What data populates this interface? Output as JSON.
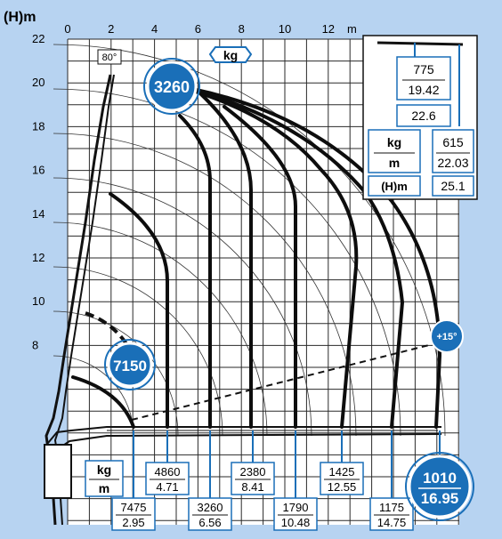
{
  "axes": {
    "y_label": "(H)m",
    "x_unit": "m",
    "x_ticks": [
      "0",
      "2",
      "4",
      "6",
      "8",
      "10",
      "12"
    ],
    "y_ticks": [
      "22",
      "20",
      "18",
      "16",
      "14",
      "12",
      "10",
      "8"
    ]
  },
  "annotations": {
    "angle_max": "80°",
    "unit_badge": "kg",
    "angle_ext": "+15°",
    "badge_3260": "3260",
    "badge_7150": "7150"
  },
  "inset": {
    "top_kg": "775",
    "top_m": "19.42",
    "mid_h": "22.6",
    "unit_kg": "kg",
    "unit_m": "m",
    "right_kg": "615",
    "right_m": "22.03",
    "h_label": "(H)m",
    "h_value": "25.1"
  },
  "legend": {
    "kg": "kg",
    "m": "m"
  },
  "load_boxes": [
    {
      "kg": "7475",
      "m": "2.95"
    },
    {
      "kg": "4860",
      "m": "4.71"
    },
    {
      "kg": "3260",
      "m": "6.56"
    },
    {
      "kg": "2380",
      "m": "8.41"
    },
    {
      "kg": "1790",
      "m": "10.48"
    },
    {
      "kg": "1425",
      "m": "12.55"
    },
    {
      "kg": "1175",
      "m": "14.75"
    },
    {
      "kg": "1010",
      "m": "16.95"
    }
  ],
  "colors": {
    "background": "#b7d3f1",
    "panel": "#ffffff",
    "grid": "#2a2a2a",
    "badge": "#1a6fb8",
    "curve": "#0d0d0d"
  }
}
